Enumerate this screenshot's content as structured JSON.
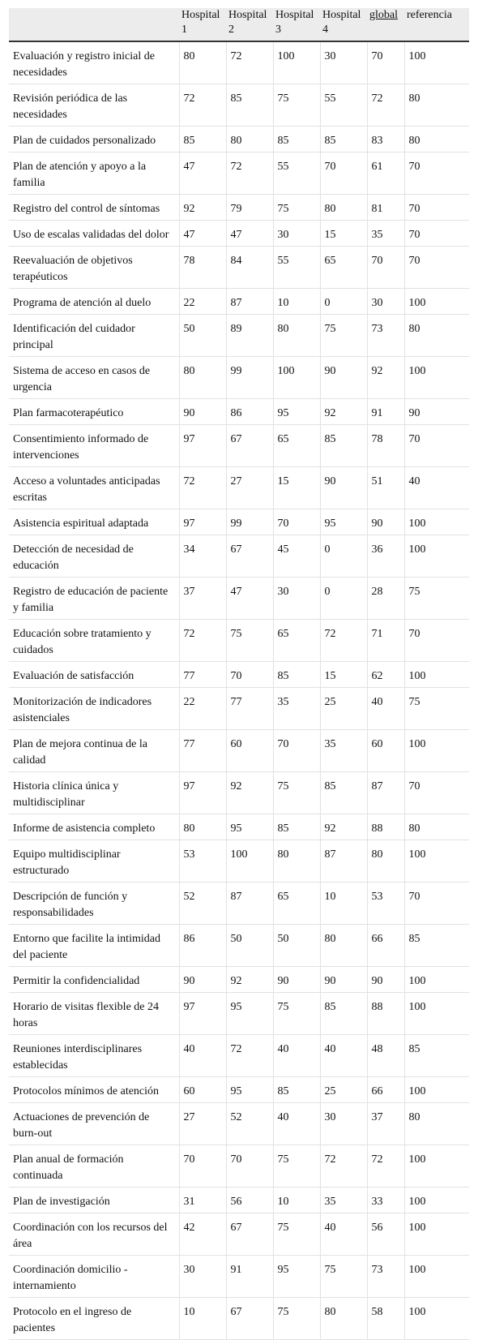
{
  "table": {
    "header": [
      "",
      "Hospital 1",
      "Hospital 2",
      "Hospital 3",
      "Hospital 4",
      "global",
      "referencia"
    ],
    "rows": [
      [
        "Evaluación y registro inicial de necesidades",
        80,
        72,
        100,
        30,
        70,
        100
      ],
      [
        "Revisión periódica de las necesidades",
        72,
        85,
        75,
        55,
        72,
        80
      ],
      [
        "Plan de cuidados personalizado",
        85,
        80,
        85,
        85,
        83,
        80
      ],
      [
        "Plan de atención y apoyo a la familia",
        47,
        72,
        55,
        70,
        61,
        70
      ],
      [
        "Registro del control de síntomas",
        92,
        79,
        75,
        80,
        81,
        70
      ],
      [
        "Uso de escalas validadas del dolor",
        47,
        47,
        30,
        15,
        35,
        70
      ],
      [
        "Reevaluación de objetivos terapéuticos",
        78,
        84,
        55,
        65,
        70,
        70
      ],
      [
        "Programa de atención al duelo",
        22,
        87,
        10,
        0,
        30,
        100
      ],
      [
        "Identificación del cuidador principal",
        50,
        89,
        80,
        75,
        73,
        80
      ],
      [
        "Sistema de acceso en casos de urgencia",
        80,
        99,
        100,
        90,
        92,
        100
      ],
      [
        "Plan farmacoterapéutico",
        90,
        86,
        95,
        92,
        91,
        90
      ],
      [
        "Consentimiento informado de intervenciones",
        97,
        67,
        65,
        85,
        78,
        70
      ],
      [
        "Acceso a voluntades anticipadas escritas",
        72,
        27,
        15,
        90,
        51,
        40
      ],
      [
        "Asistencia espiritual adaptada",
        97,
        99,
        70,
        95,
        90,
        100
      ],
      [
        "Detección de necesidad de educación",
        34,
        67,
        45,
        0,
        36,
        100
      ],
      [
        "Registro de educación de paciente y familia",
        37,
        47,
        30,
        0,
        28,
        75
      ],
      [
        "Educación sobre tratamiento y cuidados",
        72,
        75,
        65,
        72,
        71,
        70
      ],
      [
        "Evaluación de satisfacción",
        77,
        70,
        85,
        15,
        62,
        100
      ],
      [
        "Monitorización de indicadores asistenciales",
        22,
        77,
        35,
        25,
        40,
        75
      ],
      [
        "Plan de mejora continua de la calidad",
        77,
        60,
        70,
        35,
        60,
        100
      ],
      [
        "Historia clínica única y multidisciplinar",
        97,
        92,
        75,
        85,
        87,
        70
      ],
      [
        "Informe de asistencia completo",
        80,
        95,
        85,
        92,
        88,
        80
      ],
      [
        "Equipo multidisciplinar estructurado",
        53,
        100,
        80,
        87,
        80,
        100
      ],
      [
        "Descripción de función y responsabilidades",
        52,
        87,
        65,
        10,
        53,
        70
      ],
      [
        "Entorno que facilite la intimidad del paciente",
        86,
        50,
        50,
        80,
        66,
        85
      ],
      [
        "Permitir la confidencialidad",
        90,
        92,
        90,
        90,
        90,
        100
      ],
      [
        "Horario de visitas flexible de 24 horas",
        97,
        95,
        75,
        85,
        88,
        100
      ],
      [
        "Reuniones interdisciplinares establecidas",
        40,
        72,
        40,
        40,
        48,
        85
      ],
      [
        "Protocolos mínimos de atención",
        60,
        95,
        85,
        25,
        66,
        100
      ],
      [
        "Actuaciones de prevención de burn-out",
        27,
        52,
        40,
        30,
        37,
        80
      ],
      [
        "Plan anual de formación continuada",
        70,
        70,
        75,
        72,
        72,
        100
      ],
      [
        "Plan de investigación",
        31,
        56,
        10,
        35,
        33,
        100
      ],
      [
        "Coordinación con los recursos del área",
        42,
        67,
        75,
        40,
        56,
        100
      ],
      [
        "Coordinación domicilio - internamiento",
        30,
        91,
        95,
        75,
        73,
        100
      ],
      [
        "Protocolo en el ingreso de pacientes",
        10,
        67,
        75,
        80,
        58,
        100
      ]
    ]
  }
}
